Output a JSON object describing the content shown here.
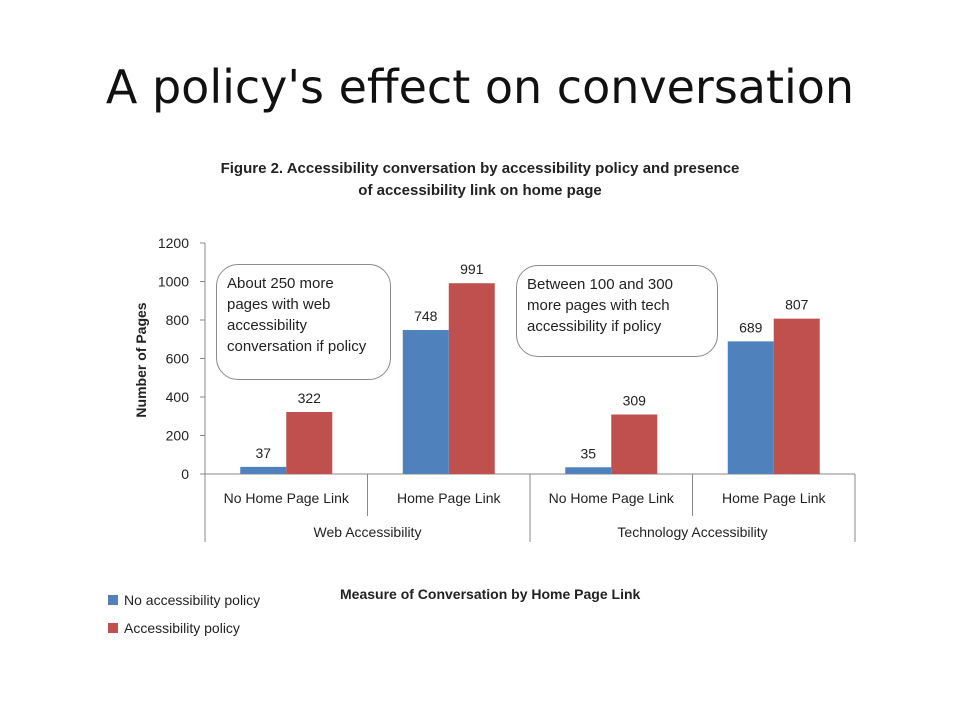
{
  "slide": {
    "title": "A policy's effect on conversation"
  },
  "figure": {
    "title_line1": "Figure 2. Accessibility conversation by accessibility policy and presence",
    "title_line2": "of accessibility link on home page",
    "notes": [
      {
        "lines": [
          "About 250 more",
          "pages with web",
          "accessibility",
          "conversation if policy"
        ]
      },
      {
        "lines": [
          "Between 100 and 300",
          "more pages with tech",
          "accessibility if policy"
        ]
      }
    ]
  },
  "chart_data": {
    "type": "bar",
    "groups": [
      {
        "label": "Web Accessibility",
        "categories": [
          "No Home Page Link",
          "Home Page Link"
        ]
      },
      {
        "label": "Technology Accessibility",
        "categories": [
          "No Home Page Link",
          "Home Page Link"
        ]
      }
    ],
    "categories": [
      "No Home Page Link",
      "Home Page Link",
      "No Home Page Link",
      "Home Page Link"
    ],
    "series": [
      {
        "name": "No accessibility policy",
        "color": "#4f81bd",
        "values": [
          37,
          748,
          35,
          689
        ]
      },
      {
        "name": "Accessibility policy",
        "color": "#c0504d",
        "values": [
          322,
          991,
          309,
          807
        ]
      }
    ],
    "ylabel": "Number of Pages",
    "xlabel": "Measure of Conversation by Home Page Link",
    "ylim": [
      0,
      1200
    ],
    "yticks": [
      0,
      200,
      400,
      600,
      800,
      1000,
      1200
    ],
    "grid": false,
    "legend_position": "bottom-left"
  }
}
